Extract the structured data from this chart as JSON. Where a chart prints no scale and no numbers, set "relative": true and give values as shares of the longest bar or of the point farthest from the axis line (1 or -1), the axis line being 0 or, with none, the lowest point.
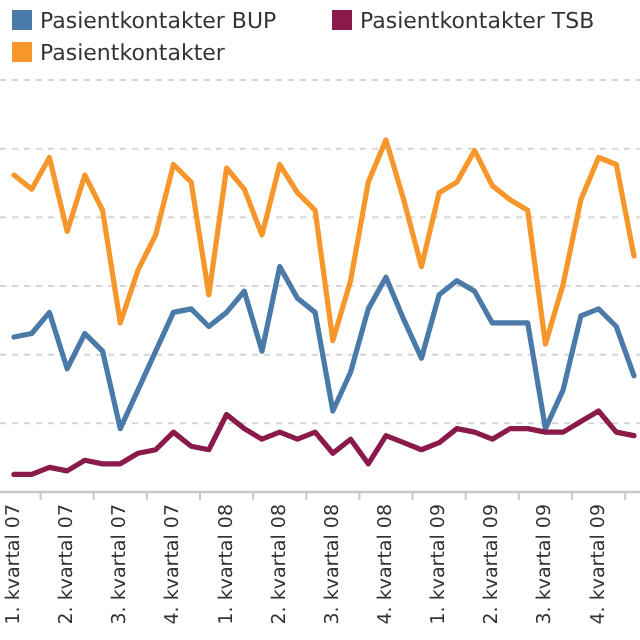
{
  "chart_data": {
    "type": "line",
    "relative": true,
    "grid": "y",
    "legend": "top",
    "marker": "none",
    "line_style": "solid",
    "categories": [
      "1. kvartal 07",
      null,
      null,
      "2. kvartal 07",
      null,
      null,
      "3. kvartal 07",
      null,
      null,
      "4. kvartal 07",
      null,
      null,
      "1. kvartal 08",
      null,
      null,
      "2. kvartal 08",
      null,
      null,
      "3. kvartal 08",
      null,
      null,
      "4. kvartal 08",
      null,
      null,
      "1. kvartal 09",
      null,
      null,
      "2. kvartal 09",
      null,
      null,
      "3. kvartal 09",
      null,
      null,
      "4. kvartal 09",
      null,
      null
    ],
    "series": [
      {
        "name": "Pasientkontakter BUP",
        "color": "#4a7aa8",
        "values": [
          0.44,
          0.45,
          0.51,
          0.35,
          0.45,
          0.4,
          0.18,
          0.29,
          0.4,
          0.51,
          0.52,
          0.47,
          0.51,
          0.57,
          0.4,
          0.64,
          0.55,
          0.51,
          0.23,
          0.34,
          0.52,
          0.61,
          0.49,
          0.38,
          0.56,
          0.6,
          0.57,
          0.48,
          0.48,
          0.48,
          0.18,
          0.29,
          0.5,
          0.52,
          0.47,
          0.33
        ]
      },
      {
        "name": "Pasientkontakter TSB",
        "color": "#8a1a4a",
        "values": [
          0.05,
          0.05,
          0.07,
          0.06,
          0.09,
          0.08,
          0.08,
          0.11,
          0.12,
          0.17,
          0.13,
          0.12,
          0.22,
          0.18,
          0.15,
          0.17,
          0.15,
          0.17,
          0.11,
          0.15,
          0.08,
          0.16,
          0.14,
          0.12,
          0.14,
          0.18,
          0.17,
          0.15,
          0.18,
          0.18,
          0.17,
          0.17,
          0.2,
          0.23,
          0.17,
          0.16
        ]
      },
      {
        "name": "Pasientkontakter",
        "color": "#f7962a",
        "values": [
          0.9,
          0.86,
          0.95,
          0.74,
          0.9,
          0.8,
          0.48,
          0.63,
          0.73,
          0.93,
          0.88,
          0.56,
          0.92,
          0.86,
          0.73,
          0.93,
          0.85,
          0.8,
          0.43,
          0.6,
          0.88,
          1.0,
          0.83,
          0.64,
          0.85,
          0.88,
          0.97,
          0.87,
          0.83,
          0.8,
          0.42,
          0.59,
          0.83,
          0.95,
          0.93,
          0.67
        ]
      }
    ]
  }
}
